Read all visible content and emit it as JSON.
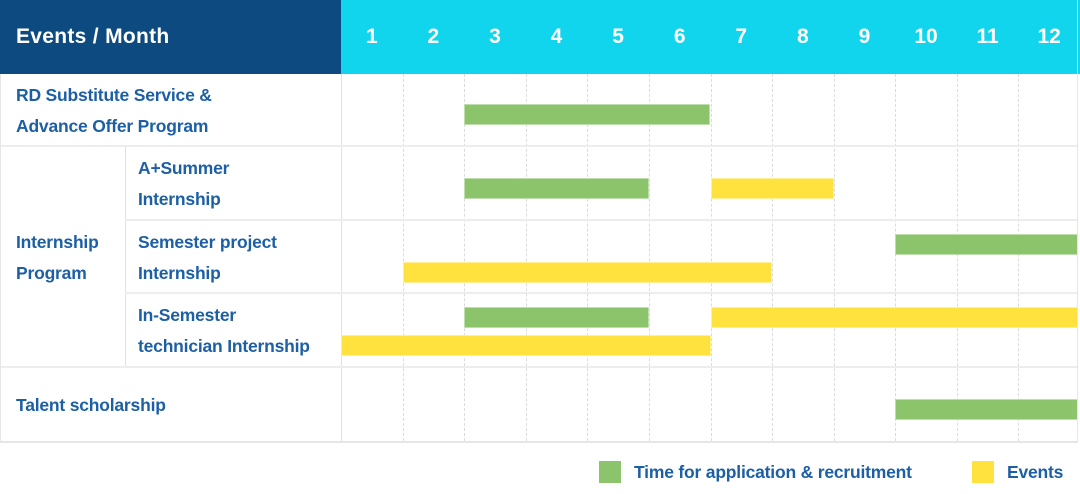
{
  "header": {
    "title": "Events / Month"
  },
  "legend": {
    "recruitment_label": "Time for application & recruitment",
    "events_label": "Events"
  },
  "colors": {
    "header_navy": "#0d4a80",
    "header_cyan": "#10d5ec",
    "bar_green": "#8bc46b",
    "bar_yellow": "#ffe23e",
    "label_blue": "#1d5fa5"
  },
  "chart_data": {
    "type": "table",
    "subtype": "gantt-timeline",
    "title": "Events / Month",
    "x_axis": "Month",
    "months": [
      "1",
      "2",
      "3",
      "4",
      "5",
      "6",
      "7",
      "8",
      "9",
      "10",
      "11",
      "12"
    ],
    "legend": [
      {
        "name": "Time for application & recruitment",
        "color": "#8bc46b"
      },
      {
        "name": "Events",
        "color": "#ffe23e"
      }
    ],
    "group": {
      "label": "Internship Program",
      "label_lines": [
        "Internship",
        "Program"
      ],
      "row_indexes": [
        1,
        2,
        3
      ]
    },
    "rows": [
      {
        "label": "RD Substitute Service & Advance Offer Program",
        "label_lines": [
          "RD Substitute Service &",
          "Advance Offer Program"
        ],
        "bars": [
          {
            "series": "recruitment",
            "start_month": 3,
            "end_month": 6,
            "lane": "center"
          }
        ]
      },
      {
        "label": "A+Summer Internship",
        "label_lines": [
          "A+Summer",
          "Internship"
        ],
        "in_group": true,
        "bars": [
          {
            "series": "recruitment",
            "start_month": 3,
            "end_month": 5,
            "lane": "center"
          },
          {
            "series": "events",
            "start_month": 7,
            "end_month": 8,
            "lane": "center"
          }
        ]
      },
      {
        "label": "Semester project Internship",
        "label_lines": [
          "Semester project",
          "Internship"
        ],
        "in_group": true,
        "bars": [
          {
            "series": "recruitment",
            "start_month": 10,
            "end_month": 12,
            "lane": "upper"
          },
          {
            "series": "events",
            "start_month": 2,
            "end_month": 7,
            "lane": "lower"
          }
        ]
      },
      {
        "label": "In-Semester technician Internship",
        "label_lines": [
          "In-Semester",
          "technician Internship"
        ],
        "in_group": true,
        "bars": [
          {
            "series": "recruitment",
            "start_month": 3,
            "end_month": 5,
            "lane": "upper"
          },
          {
            "series": "events",
            "start_month": 7,
            "end_month": 12,
            "lane": "upper"
          },
          {
            "series": "events",
            "start_month": 1,
            "end_month": 6,
            "lane": "lower"
          }
        ]
      },
      {
        "label": "Talent scholarship",
        "label_lines": [
          "Talent scholarship"
        ],
        "bars": [
          {
            "series": "recruitment",
            "start_month": 10,
            "end_month": 12,
            "lane": "center"
          }
        ]
      }
    ]
  }
}
